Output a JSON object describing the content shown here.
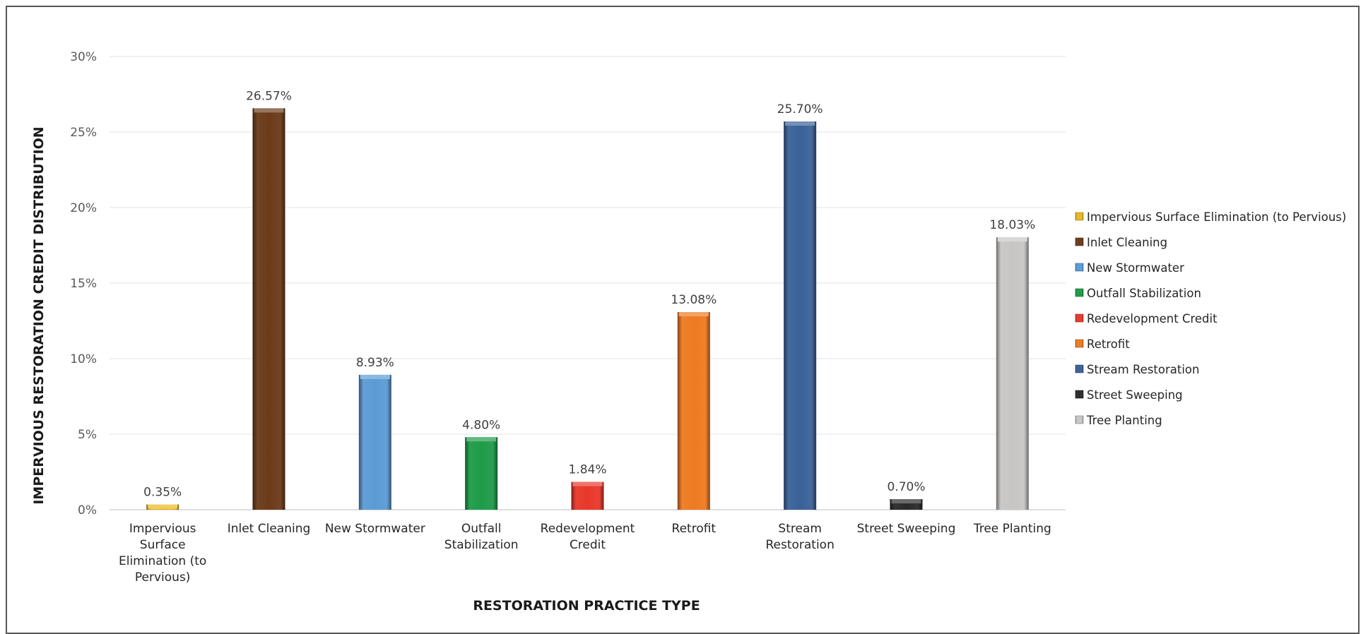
{
  "chart_data": {
    "type": "bar",
    "categories": [
      "Impervious Surface Elimination (to Pervious)",
      "Inlet Cleaning",
      "New Stormwater",
      "Outfall Stabilization",
      "Redevelopment Credit",
      "Retrofit",
      "Stream Restoration",
      "Street Sweeping",
      "Tree Planting"
    ],
    "category_label_lines": [
      [
        "Impervious",
        "Surface",
        "Elimination (to",
        "Pervious)"
      ],
      [
        "Inlet Cleaning"
      ],
      [
        "New Stormwater"
      ],
      [
        "Outfall",
        "Stabilization"
      ],
      [
        "Redevelopment",
        "Credit"
      ],
      [
        "Retrofit"
      ],
      [
        "Stream",
        "Restoration"
      ],
      [
        "Street Sweeping"
      ],
      [
        "Tree Planting"
      ]
    ],
    "values": [
      0.35,
      26.57,
      8.93,
      4.8,
      1.84,
      13.08,
      25.7,
      0.7,
      18.03
    ],
    "data_labels": [
      "0.35%",
      "26.57%",
      "8.93%",
      "4.80%",
      "1.84%",
      "13.08%",
      "25.70%",
      "0.70%",
      "18.03%"
    ],
    "colors": [
      "#E8B820",
      "#6B3A1A",
      "#5B9BD5",
      "#1E9B48",
      "#E8382A",
      "#EE7A22",
      "#3A6298",
      "#2A2A2A",
      "#C8C6C4"
    ],
    "ylim": [
      0,
      30
    ],
    "yticks": [
      0,
      5,
      10,
      15,
      20,
      25,
      30
    ],
    "ytick_labels": [
      "0%",
      "5%",
      "10%",
      "15%",
      "20%",
      "25%",
      "30%"
    ],
    "xlabel": "RESTORATION PRACTICE TYPE",
    "ylabel": "IMPERVIOUS RESTORATION CREDIT DISTRIBUTION",
    "grid": true,
    "legend_position": "right",
    "legend": [
      "Impervious Surface Elimination (to Pervious)",
      "Inlet Cleaning",
      "New Stormwater",
      "Outfall Stabilization",
      "Redevelopment Credit",
      "Retrofit",
      "Stream Restoration",
      "Street Sweeping",
      "Tree Planting"
    ]
  }
}
